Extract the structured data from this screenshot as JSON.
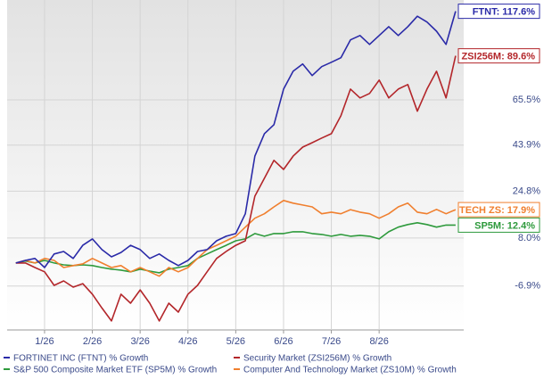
{
  "chart_data": {
    "type": "line",
    "log_scale": true,
    "grid": true,
    "legend": "bottom",
    "categories": [
      null,
      null,
      null,
      "1/26",
      null,
      null,
      null,
      null,
      "2/26",
      null,
      null,
      null,
      null,
      "3/26",
      null,
      null,
      null,
      null,
      "4/26",
      null,
      null,
      null,
      null,
      "5/26",
      null,
      null,
      null,
      null,
      "6/26",
      null,
      null,
      null,
      null,
      "7/26",
      null,
      null,
      null,
      null,
      "8/26",
      null,
      null,
      null,
      null,
      null,
      null,
      null,
      null
    ],
    "ylim": [
      -18.7,
      125.3
    ],
    "yticks": [
      {
        "value": -6.9,
        "label": "-6.9%"
      },
      {
        "value": 8.0,
        "label": "8.0%"
      },
      {
        "value": 24.8,
        "label": "24.8%"
      },
      {
        "value": 43.9,
        "label": "43.9%"
      },
      {
        "value": 65.5,
        "label": "65.5%"
      }
    ],
    "series": [
      {
        "name": "S&P 500 Composite Market ETF (SP5M) % Growth",
        "color": "#2e9a3c",
        "end_label": "SP5M: 12.4%",
        "values": [
          0,
          0.6,
          0,
          0.8,
          0,
          -0.6,
          -0.8,
          -0.6,
          -0.8,
          -1.4,
          -1.9,
          -2.2,
          -2.7,
          -1.9,
          -2.5,
          -3.0,
          -1.9,
          -1.4,
          -0.8,
          1.4,
          2.8,
          4.2,
          5.6,
          7.1,
          7.7,
          9.5,
          8.6,
          9.5,
          9.5,
          10.1,
          10.1,
          9.5,
          9.2,
          8.6,
          9.2,
          8.6,
          8.9,
          8.6,
          7.7,
          10.1,
          11.7,
          12.6,
          13.2,
          12.6,
          11.7,
          12.4,
          12.4
        ]
      },
      {
        "name": "Computer And Technology Market (ZS10M) % Growth",
        "color": "#f07f2e",
        "end_label": "TECH ZS: 17.9%",
        "values": [
          0,
          0.8,
          0,
          1.4,
          0.8,
          -1.4,
          -0.8,
          -0.3,
          1.4,
          0,
          -1.4,
          -0.8,
          -2.7,
          -1.4,
          -2.7,
          -4.0,
          -1.4,
          -2.7,
          -1.4,
          1.4,
          4.2,
          5.6,
          7.1,
          8.6,
          11.7,
          14.8,
          16.4,
          18.9,
          21.3,
          20.3,
          19.6,
          18.9,
          16.4,
          17.0,
          16.4,
          17.9,
          17.0,
          16.4,
          14.8,
          16.4,
          18.9,
          20.3,
          17.0,
          16.4,
          18.0,
          16.4,
          17.9
        ]
      },
      {
        "name": "Security Market (ZSI256M) % Growth",
        "color": "#b3262a",
        "end_label": "ZSI256M: 89.6%",
        "values": [
          0,
          0,
          -1.4,
          -2.7,
          -6.7,
          -5.4,
          -7.2,
          -6.2,
          -9.2,
          -13.0,
          -16.4,
          -9.2,
          -11.7,
          -8.0,
          -11.7,
          -16.4,
          -11.7,
          -14.1,
          -9.2,
          -6.7,
          -2.7,
          1.4,
          3.6,
          5.6,
          7.1,
          22.9,
          29.9,
          37.3,
          33.5,
          39.1,
          43.0,
          45.0,
          47.1,
          49.1,
          57.6,
          71.1,
          66.5,
          68.8,
          75.9,
          66.5,
          71.1,
          73.5,
          59.8,
          71.1,
          80.8,
          66.5,
          89.6
        ]
      },
      {
        "name": "FORTINET INC (FTNT) % Growth",
        "color": "#2a2aa8",
        "end_label": "FTNT: 117.6%",
        "values": [
          0,
          0.8,
          1.4,
          -1.4,
          2.8,
          3.6,
          1.4,
          5.6,
          7.7,
          4.2,
          1.9,
          3.3,
          5.6,
          4.2,
          1.4,
          2.8,
          0.8,
          -0.8,
          0.8,
          3.6,
          4.2,
          7.1,
          8.6,
          9.5,
          16.4,
          39.1,
          49.1,
          53.3,
          71.1,
          80.8,
          84.9,
          78.4,
          83.4,
          85.9,
          88.5,
          99.2,
          101.9,
          96.4,
          101.9,
          107.5,
          101.9,
          107.5,
          114.3,
          110.5,
          104.6,
          96.4,
          117.6
        ]
      }
    ]
  }
}
